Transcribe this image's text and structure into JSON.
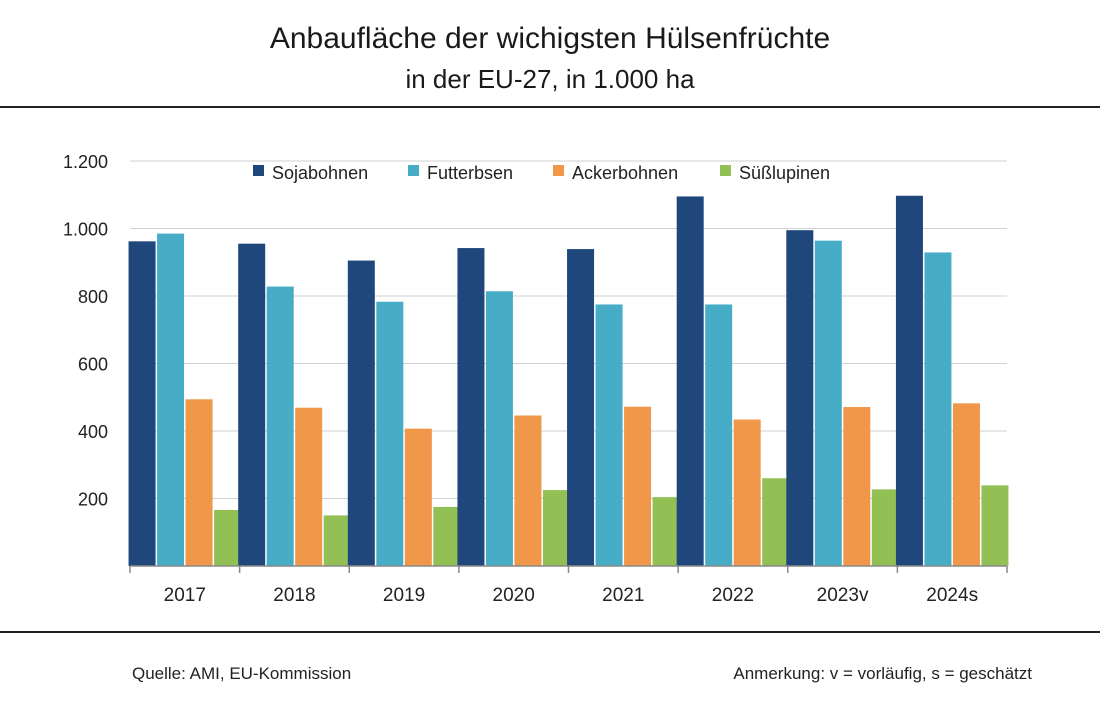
{
  "header": {
    "title": "Anbaufläche der wichigsten Hülsenfrüchte",
    "subtitle": "in der EU-27, in 1.000 ha"
  },
  "footer": {
    "source": "Quelle: AMI, EU-Kommission",
    "note": "Anmerkung: v = vorläufig, s = geschätzt"
  },
  "chart_data": {
    "type": "bar",
    "title": "Anbaufläche der wichigsten Hülsenfrüchte",
    "subtitle": "in der EU-27, in 1.000 ha",
    "categories": [
      "2017",
      "2018",
      "2019",
      "2020",
      "2021",
      "2022",
      "2023v",
      "2024s"
    ],
    "series": [
      {
        "name": "Sojabohnen",
        "color": "#1f477b",
        "values": [
          962,
          955,
          905,
          942,
          939,
          1095,
          995,
          1097
        ]
      },
      {
        "name": "Futterbsen",
        "color": "#47adc7",
        "values": [
          985,
          828,
          783,
          814,
          775,
          775,
          964,
          929
        ]
      },
      {
        "name": "Ackerbohnen",
        "color": "#f0974a",
        "values": [
          494,
          469,
          407,
          446,
          472,
          434,
          471,
          482
        ]
      },
      {
        "name": "Süßlupinen",
        "color": "#93c055",
        "values": [
          166,
          150,
          175,
          225,
          204,
          260,
          227,
          239
        ]
      }
    ],
    "yticks": [
      "200",
      "400",
      "600",
      "800",
      "1.000",
      "1.200"
    ],
    "ytick_values": [
      200,
      400,
      600,
      800,
      1000,
      1200
    ],
    "ylim": [
      0,
      1200
    ],
    "grid": true,
    "legend_position": "top"
  }
}
